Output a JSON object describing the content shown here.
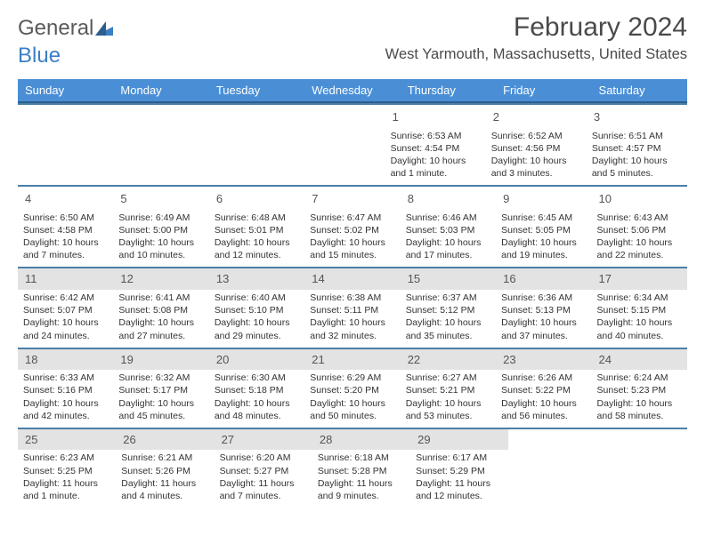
{
  "logo": {
    "text_dark": "General",
    "text_blue": "Blue"
  },
  "title": "February 2024",
  "location": "West Yarmouth, Massachusetts, United States",
  "colors": {
    "header_bg": "#4a8fd6",
    "header_border": "#2c5e8e",
    "week_divider": "#4a7fa8",
    "shaded_bg": "#e3e3e3",
    "logo_blue": "#3b7fc4",
    "text_gray": "#4a4a4a"
  },
  "day_names": [
    "Sunday",
    "Monday",
    "Tuesday",
    "Wednesday",
    "Thursday",
    "Friday",
    "Saturday"
  ],
  "weeks": [
    {
      "shaded": false,
      "days": [
        null,
        null,
        null,
        null,
        {
          "n": 1,
          "sunrise": "6:53 AM",
          "sunset": "4:54 PM",
          "daylight": "10 hours and 1 minute."
        },
        {
          "n": 2,
          "sunrise": "6:52 AM",
          "sunset": "4:56 PM",
          "daylight": "10 hours and 3 minutes."
        },
        {
          "n": 3,
          "sunrise": "6:51 AM",
          "sunset": "4:57 PM",
          "daylight": "10 hours and 5 minutes."
        }
      ]
    },
    {
      "shaded": false,
      "days": [
        {
          "n": 4,
          "sunrise": "6:50 AM",
          "sunset": "4:58 PM",
          "daylight": "10 hours and 7 minutes."
        },
        {
          "n": 5,
          "sunrise": "6:49 AM",
          "sunset": "5:00 PM",
          "daylight": "10 hours and 10 minutes."
        },
        {
          "n": 6,
          "sunrise": "6:48 AM",
          "sunset": "5:01 PM",
          "daylight": "10 hours and 12 minutes."
        },
        {
          "n": 7,
          "sunrise": "6:47 AM",
          "sunset": "5:02 PM",
          "daylight": "10 hours and 15 minutes."
        },
        {
          "n": 8,
          "sunrise": "6:46 AM",
          "sunset": "5:03 PM",
          "daylight": "10 hours and 17 minutes."
        },
        {
          "n": 9,
          "sunrise": "6:45 AM",
          "sunset": "5:05 PM",
          "daylight": "10 hours and 19 minutes."
        },
        {
          "n": 10,
          "sunrise": "6:43 AM",
          "sunset": "5:06 PM",
          "daylight": "10 hours and 22 minutes."
        }
      ]
    },
    {
      "shaded": true,
      "days": [
        {
          "n": 11,
          "sunrise": "6:42 AM",
          "sunset": "5:07 PM",
          "daylight": "10 hours and 24 minutes."
        },
        {
          "n": 12,
          "sunrise": "6:41 AM",
          "sunset": "5:08 PM",
          "daylight": "10 hours and 27 minutes."
        },
        {
          "n": 13,
          "sunrise": "6:40 AM",
          "sunset": "5:10 PM",
          "daylight": "10 hours and 29 minutes."
        },
        {
          "n": 14,
          "sunrise": "6:38 AM",
          "sunset": "5:11 PM",
          "daylight": "10 hours and 32 minutes."
        },
        {
          "n": 15,
          "sunrise": "6:37 AM",
          "sunset": "5:12 PM",
          "daylight": "10 hours and 35 minutes."
        },
        {
          "n": 16,
          "sunrise": "6:36 AM",
          "sunset": "5:13 PM",
          "daylight": "10 hours and 37 minutes."
        },
        {
          "n": 17,
          "sunrise": "6:34 AM",
          "sunset": "5:15 PM",
          "daylight": "10 hours and 40 minutes."
        }
      ]
    },
    {
      "shaded": true,
      "days": [
        {
          "n": 18,
          "sunrise": "6:33 AM",
          "sunset": "5:16 PM",
          "daylight": "10 hours and 42 minutes."
        },
        {
          "n": 19,
          "sunrise": "6:32 AM",
          "sunset": "5:17 PM",
          "daylight": "10 hours and 45 minutes."
        },
        {
          "n": 20,
          "sunrise": "6:30 AM",
          "sunset": "5:18 PM",
          "daylight": "10 hours and 48 minutes."
        },
        {
          "n": 21,
          "sunrise": "6:29 AM",
          "sunset": "5:20 PM",
          "daylight": "10 hours and 50 minutes."
        },
        {
          "n": 22,
          "sunrise": "6:27 AM",
          "sunset": "5:21 PM",
          "daylight": "10 hours and 53 minutes."
        },
        {
          "n": 23,
          "sunrise": "6:26 AM",
          "sunset": "5:22 PM",
          "daylight": "10 hours and 56 minutes."
        },
        {
          "n": 24,
          "sunrise": "6:24 AM",
          "sunset": "5:23 PM",
          "daylight": "10 hours and 58 minutes."
        }
      ]
    },
    {
      "shaded": true,
      "days": [
        {
          "n": 25,
          "sunrise": "6:23 AM",
          "sunset": "5:25 PM",
          "daylight": "11 hours and 1 minute."
        },
        {
          "n": 26,
          "sunrise": "6:21 AM",
          "sunset": "5:26 PM",
          "daylight": "11 hours and 4 minutes."
        },
        {
          "n": 27,
          "sunrise": "6:20 AM",
          "sunset": "5:27 PM",
          "daylight": "11 hours and 7 minutes."
        },
        {
          "n": 28,
          "sunrise": "6:18 AM",
          "sunset": "5:28 PM",
          "daylight": "11 hours and 9 minutes."
        },
        {
          "n": 29,
          "sunrise": "6:17 AM",
          "sunset": "5:29 PM",
          "daylight": "11 hours and 12 minutes."
        },
        null,
        null
      ]
    }
  ],
  "labels": {
    "sunrise_prefix": "Sunrise: ",
    "sunset_prefix": "Sunset: ",
    "daylight_prefix": "Daylight: "
  }
}
